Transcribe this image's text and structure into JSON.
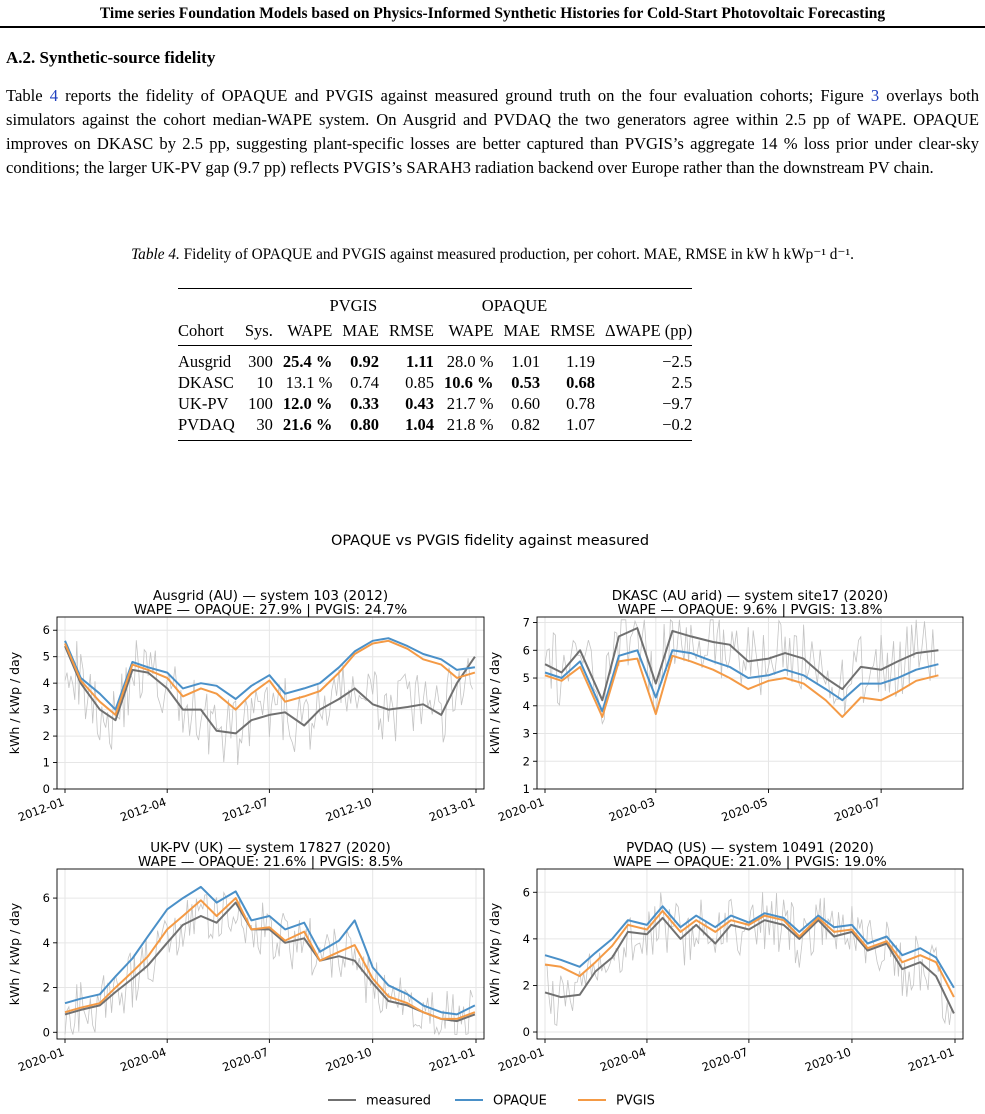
{
  "running_header": "Time series Foundation Models based on Physics-Informed Synthetic Histories for Cold-Start Photovoltaic Forecasting",
  "section": {
    "number": "A.2.",
    "title": "Synthetic-source fidelity"
  },
  "paragraph": {
    "p1": "Table ",
    "ref_table": "4",
    "p2": " reports the fidelity of OPAQUE and PVGIS against measured ground truth on the four evaluation cohorts; Figure ",
    "ref_figure": "3",
    "p3": " overlays both simulators against the cohort median-WAPE system. On Ausgrid and PVDAQ the two generators agree within 2.5 pp of WAPE. OPAQUE improves on DKASC by 2.5 pp, suggesting plant-specific losses are better captured than PVGIS’s aggregate 14 % loss prior under clear-sky conditions; the larger UK-PV gap (9.7 pp) reflects PVGIS’s SARAH3 radiation backend over Europe rather than the downstream PV chain."
  },
  "table": {
    "caption_label": "Table 4.",
    "caption_text": " Fidelity of OPAQUE and PVGIS against measured production, per cohort. MAE, RMSE in kW h kWp⁻¹ d⁻¹.",
    "group_headers": [
      "PVGIS",
      "OPAQUE"
    ],
    "columns": [
      "Cohort",
      "Sys.",
      "WAPE",
      "MAE",
      "RMSE",
      "WAPE",
      "MAE",
      "RMSE",
      "ΔWAPE (pp)"
    ],
    "rows": [
      {
        "cohort": "Ausgrid",
        "sys": "300",
        "pvgis_wape": "25.4 %",
        "pvgis_mae": "0.92",
        "pvgis_rmse": "1.11",
        "opaque_wape": "28.0 %",
        "opaque_mae": "1.01",
        "opaque_rmse": "1.19",
        "delta": "−2.5",
        "bold": [
          "pvgis_wape",
          "pvgis_mae",
          "pvgis_rmse"
        ]
      },
      {
        "cohort": "DKASC",
        "sys": "10",
        "pvgis_wape": "13.1 %",
        "pvgis_mae": "0.74",
        "pvgis_rmse": "0.85",
        "opaque_wape": "10.6 %",
        "opaque_mae": "0.53",
        "opaque_rmse": "0.68",
        "delta": "2.5",
        "bold": [
          "opaque_wape",
          "opaque_mae",
          "opaque_rmse"
        ]
      },
      {
        "cohort": "UK-PV",
        "sys": "100",
        "pvgis_wape": "12.0 %",
        "pvgis_mae": "0.33",
        "pvgis_rmse": "0.43",
        "opaque_wape": "21.7 %",
        "opaque_mae": "0.60",
        "opaque_rmse": "0.78",
        "delta": "−9.7",
        "bold": [
          "pvgis_wape",
          "pvgis_mae",
          "pvgis_rmse"
        ]
      },
      {
        "cohort": "PVDAQ",
        "sys": "30",
        "pvgis_wape": "21.6 %",
        "pvgis_mae": "0.80",
        "pvgis_rmse": "1.04",
        "opaque_wape": "21.8 %",
        "opaque_mae": "0.82",
        "opaque_rmse": "1.07",
        "delta": "−0.2",
        "bold": [
          "pvgis_wape",
          "pvgis_mae",
          "pvgis_rmse"
        ]
      }
    ]
  },
  "figure": {
    "suptitle": "OPAQUE vs PVGIS fidelity against measured",
    "legend": [
      {
        "name": "measured",
        "color": "#707070"
      },
      {
        "name": "OPAQUE",
        "color": "#4a90c8"
      },
      {
        "name": "PVGIS",
        "color": "#f49a45"
      }
    ]
  },
  "chart_data": [
    {
      "type": "line",
      "title": "Ausgrid (AU) — system 103 (2012)",
      "subtitle": "WAPE — OPAQUE: 27.9% | PVGIS: 24.7%",
      "ylabel": "kWh / kWp / day",
      "ylim": [
        0,
        6.5
      ],
      "yticks": [
        0,
        1,
        2,
        3,
        4,
        5,
        6
      ],
      "xlim": [
        "2012-01-01",
        "2013-01-01"
      ],
      "xticks": [
        "2012-01",
        "2012-04",
        "2012-07",
        "2012-10",
        "2013-01"
      ],
      "x": [
        "2012-01-01",
        "2012-01-15",
        "2012-02-01",
        "2012-02-15",
        "2012-03-01",
        "2012-03-15",
        "2012-04-01",
        "2012-04-15",
        "2012-05-01",
        "2012-05-15",
        "2012-06-01",
        "2012-06-15",
        "2012-07-01",
        "2012-07-15",
        "2012-08-01",
        "2012-08-15",
        "2012-09-01",
        "2012-09-15",
        "2012-10-01",
        "2012-10-15",
        "2012-11-01",
        "2012-11-15",
        "2012-12-01",
        "2012-12-15",
        "2012-12-31"
      ],
      "series": [
        {
          "name": "measured",
          "values": [
            5.4,
            4.0,
            3.0,
            2.6,
            4.5,
            4.4,
            3.8,
            3.0,
            3.0,
            2.2,
            2.1,
            2.6,
            2.8,
            2.9,
            2.4,
            3.0,
            3.4,
            3.8,
            3.2,
            3.0,
            3.1,
            3.2,
            2.8,
            4.0,
            5.0
          ]
        },
        {
          "name": "OPAQUE",
          "values": [
            5.6,
            4.2,
            3.6,
            3.0,
            4.8,
            4.6,
            4.4,
            3.8,
            4.0,
            3.9,
            3.4,
            3.9,
            4.3,
            3.6,
            3.8,
            4.0,
            4.6,
            5.2,
            5.6,
            5.7,
            5.4,
            5.1,
            4.9,
            4.5,
            4.6
          ]
        },
        {
          "name": "PVGIS",
          "values": [
            5.5,
            4.1,
            3.3,
            2.8,
            4.7,
            4.5,
            4.2,
            3.5,
            3.8,
            3.6,
            3.0,
            3.6,
            4.1,
            3.3,
            3.5,
            3.7,
            4.4,
            5.1,
            5.5,
            5.6,
            5.3,
            4.9,
            4.7,
            4.2,
            4.4
          ]
        }
      ]
    },
    {
      "type": "line",
      "title": "DKASC (AU arid) — system site17 (2020)",
      "subtitle": "WAPE — OPAQUE: 9.6% | PVGIS: 13.8%",
      "ylabel": "kWh / kWp / day",
      "ylim": [
        1,
        7.2
      ],
      "yticks": [
        1,
        2,
        3,
        4,
        5,
        6,
        7
      ],
      "xlim": [
        "2020-01-01",
        "2020-08-10"
      ],
      "xticks": [
        "2020-01",
        "2020-03",
        "2020-05",
        "2020-07"
      ],
      "x": [
        "2020-01-01",
        "2020-01-10",
        "2020-01-20",
        "2020-02-01",
        "2020-02-10",
        "2020-02-20",
        "2020-03-01",
        "2020-03-10",
        "2020-03-20",
        "2020-04-01",
        "2020-04-10",
        "2020-04-20",
        "2020-05-01",
        "2020-05-10",
        "2020-05-20",
        "2020-06-01",
        "2020-06-10",
        "2020-06-20",
        "2020-07-01",
        "2020-07-10",
        "2020-07-20",
        "2020-08-01"
      ],
      "series": [
        {
          "name": "measured",
          "values": [
            5.5,
            5.2,
            6.0,
            4.2,
            6.5,
            6.8,
            4.8,
            6.7,
            6.5,
            6.3,
            6.2,
            5.6,
            5.7,
            5.9,
            5.7,
            5.0,
            4.6,
            5.4,
            5.3,
            5.6,
            5.9,
            6.0
          ]
        },
        {
          "name": "OPAQUE",
          "values": [
            5.2,
            5.0,
            5.6,
            3.8,
            5.8,
            6.0,
            4.3,
            6.0,
            5.9,
            5.6,
            5.4,
            5.0,
            5.1,
            5.3,
            5.1,
            4.6,
            4.2,
            4.8,
            4.8,
            5.0,
            5.3,
            5.5
          ]
        },
        {
          "name": "PVGIS",
          "values": [
            5.1,
            4.9,
            5.4,
            3.6,
            5.6,
            5.7,
            3.7,
            5.8,
            5.6,
            5.3,
            5.0,
            4.6,
            4.9,
            5.0,
            4.8,
            4.2,
            3.6,
            4.3,
            4.2,
            4.5,
            4.9,
            5.1
          ]
        }
      ]
    },
    {
      "type": "line",
      "title": "UK-PV (UK) — system 17827 (2020)",
      "subtitle": "WAPE — OPAQUE: 21.6% | PVGIS: 8.5%",
      "ylabel": "kWh / kWp / day",
      "ylim": [
        -0.3,
        7.3
      ],
      "yticks": [
        0,
        2,
        4,
        6
      ],
      "xlim": [
        "2020-01-01",
        "2021-01-01"
      ],
      "xticks": [
        "2020-01",
        "2020-04",
        "2020-07",
        "2020-10",
        "2021-01"
      ],
      "x": [
        "2020-01-01",
        "2020-01-15",
        "2020-02-01",
        "2020-02-15",
        "2020-03-01",
        "2020-03-15",
        "2020-04-01",
        "2020-04-15",
        "2020-05-01",
        "2020-05-15",
        "2020-06-01",
        "2020-06-15",
        "2020-07-01",
        "2020-07-15",
        "2020-08-01",
        "2020-08-15",
        "2020-09-01",
        "2020-09-15",
        "2020-10-01",
        "2020-10-15",
        "2020-11-01",
        "2020-11-15",
        "2020-12-01",
        "2020-12-15",
        "2020-12-31"
      ],
      "series": [
        {
          "name": "measured",
          "values": [
            0.8,
            1.0,
            1.2,
            1.8,
            2.4,
            3.0,
            4.0,
            4.8,
            5.2,
            4.9,
            5.8,
            4.6,
            4.6,
            4.0,
            4.2,
            3.2,
            3.4,
            3.2,
            2.2,
            1.4,
            1.2,
            0.9,
            0.6,
            0.5,
            0.8
          ]
        },
        {
          "name": "OPAQUE",
          "values": [
            1.3,
            1.5,
            1.7,
            2.5,
            3.3,
            4.3,
            5.5,
            6.0,
            6.5,
            5.8,
            6.3,
            5.0,
            5.2,
            4.6,
            4.9,
            3.6,
            4.1,
            5.0,
            2.9,
            2.1,
            1.7,
            1.2,
            0.9,
            0.8,
            1.2
          ]
        },
        {
          "name": "PVGIS",
          "values": [
            0.9,
            1.1,
            1.3,
            2.0,
            2.7,
            3.4,
            4.6,
            5.2,
            5.9,
            5.2,
            6.0,
            4.6,
            4.7,
            4.1,
            4.5,
            3.2,
            3.6,
            3.9,
            2.4,
            1.6,
            1.3,
            0.9,
            0.6,
            0.6,
            0.9
          ]
        }
      ]
    },
    {
      "type": "line",
      "title": "PVDAQ (US) — system 10491 (2020)",
      "subtitle": "WAPE — OPAQUE: 21.0% | PVGIS: 19.0%",
      "ylabel": "kWh / kWp / day",
      "ylim": [
        -0.3,
        7.0
      ],
      "yticks": [
        0,
        2,
        4,
        6
      ],
      "xlim": [
        "2020-01-01",
        "2021-01-01"
      ],
      "xticks": [
        "2020-01",
        "2020-04",
        "2020-07",
        "2020-10",
        "2021-01"
      ],
      "x": [
        "2020-01-01",
        "2020-01-15",
        "2020-02-01",
        "2020-02-15",
        "2020-03-01",
        "2020-03-15",
        "2020-04-01",
        "2020-04-15",
        "2020-05-01",
        "2020-05-15",
        "2020-06-01",
        "2020-06-15",
        "2020-07-01",
        "2020-07-15",
        "2020-08-01",
        "2020-08-15",
        "2020-09-01",
        "2020-09-15",
        "2020-10-01",
        "2020-10-15",
        "2020-11-01",
        "2020-11-15",
        "2020-12-01",
        "2020-12-15",
        "2020-12-31"
      ],
      "series": [
        {
          "name": "measured",
          "values": [
            1.7,
            1.5,
            1.6,
            2.6,
            3.2,
            4.3,
            4.2,
            4.9,
            4.0,
            4.6,
            3.8,
            4.6,
            4.4,
            4.8,
            4.6,
            4.0,
            4.8,
            4.1,
            4.3,
            3.5,
            3.8,
            2.7,
            3.0,
            2.4,
            0.8
          ]
        },
        {
          "name": "OPAQUE",
          "values": [
            3.3,
            3.1,
            2.8,
            3.4,
            4.0,
            4.8,
            4.6,
            5.4,
            4.5,
            5.0,
            4.5,
            5.0,
            4.7,
            5.1,
            4.9,
            4.3,
            5.0,
            4.5,
            4.6,
            3.8,
            4.1,
            3.3,
            3.6,
            3.2,
            1.9
          ]
        },
        {
          "name": "PVGIS",
          "values": [
            2.9,
            2.8,
            2.4,
            3.0,
            3.7,
            4.6,
            4.4,
            5.2,
            4.3,
            4.8,
            4.3,
            4.8,
            4.6,
            5.0,
            4.8,
            4.1,
            4.9,
            4.3,
            4.4,
            3.6,
            3.9,
            3.0,
            3.3,
            3.0,
            1.5
          ]
        }
      ]
    }
  ]
}
